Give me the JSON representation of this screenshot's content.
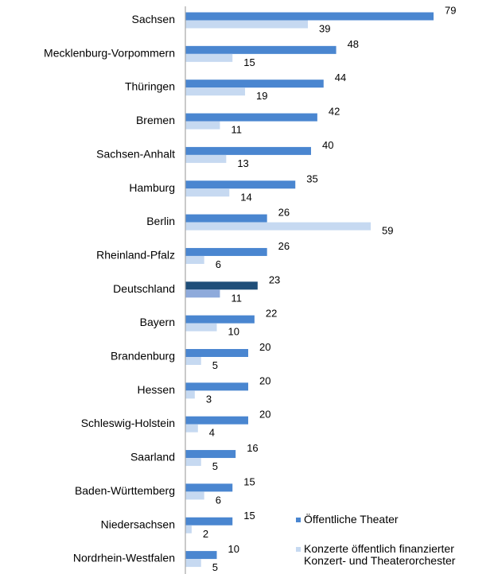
{
  "chart_data": {
    "type": "bar",
    "orientation": "horizontal",
    "categories": [
      "Sachsen",
      "Mecklenburg-Vorpommern",
      "Thüringen",
      "Bremen",
      "Sachsen-Anhalt",
      "Hamburg",
      "Berlin",
      "Rheinland-Pfalz",
      "Deutschland",
      "Bayern",
      "Brandenburg",
      "Hessen",
      "Schleswig-Holstein",
      "Saarland",
      "Baden-Württemberg",
      "Niedersachsen",
      "Nordrhein-Westfalen"
    ],
    "series": [
      {
        "name": "Öffentliche Theater",
        "values": [
          79,
          48,
          44,
          42,
          40,
          35,
          26,
          26,
          23,
          22,
          20,
          20,
          20,
          16,
          15,
          15,
          10
        ],
        "color": "#4a86d0"
      },
      {
        "name": "Konzerte öffentlich finanzierter Konzert- und Theaterorchester",
        "values": [
          39,
          15,
          19,
          11,
          13,
          14,
          59,
          6,
          11,
          10,
          5,
          3,
          4,
          5,
          6,
          2,
          5
        ],
        "color": "#c6d9f1"
      }
    ],
    "highlight": {
      "category": "Deutschland",
      "colors": [
        "#1f4e79",
        "#8eaadb"
      ]
    },
    "legend": [
      "Öffentliche Theater",
      "Konzerte öffentlich finanzierter Konzert- und Theaterorchester"
    ],
    "legend_lines": [
      [
        "Öffentliche Theater"
      ],
      [
        "Konzerte öffentlich finanzierter",
        "Konzert- und Theaterorchester"
      ]
    ],
    "legend_position": "bottom-right",
    "xlim": [
      0,
      80
    ],
    "grid": false,
    "title": "",
    "xlabel": "",
    "ylabel": ""
  }
}
